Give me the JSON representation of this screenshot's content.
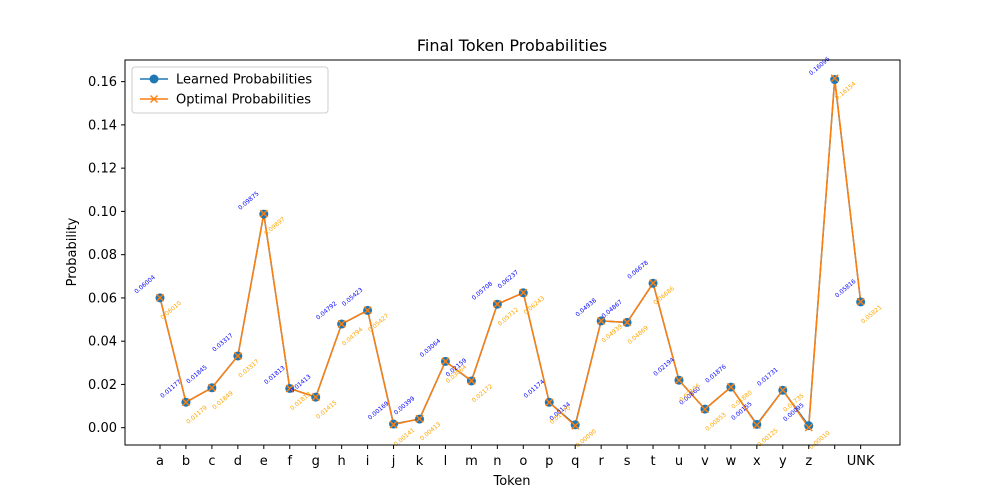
{
  "chart_data": {
    "type": "line",
    "title": "Final Token Probabilities",
    "xlabel": "Token",
    "ylabel": "Probability",
    "categories": [
      "a",
      "b",
      "c",
      "d",
      "e",
      "f",
      "g",
      "h",
      "i",
      "j",
      "k",
      "l",
      "m",
      "n",
      "o",
      "p",
      "q",
      "r",
      "s",
      "t",
      "u",
      "v",
      "w",
      "x",
      "y",
      "z",
      "",
      "UNK"
    ],
    "ylim": [
      -0.008,
      0.17
    ],
    "yticks": [
      0.0,
      0.02,
      0.04,
      0.06,
      0.08,
      0.1,
      0.12,
      0.14,
      0.16
    ],
    "ytick_labels": [
      "0.00",
      "0.02",
      "0.04",
      "0.06",
      "0.08",
      "0.10",
      "0.12",
      "0.14",
      "0.16"
    ],
    "legend_position": "top-left",
    "grid": false,
    "series": [
      {
        "name": "Learned Probabilities",
        "color": "#1f77b4",
        "label_color": "#0000ff",
        "marker": "circle",
        "values": [
          0.06004,
          0.01177,
          0.01845,
          0.03317,
          0.09875,
          0.01813,
          0.01413,
          0.04792,
          0.05423,
          0.00169,
          0.00399,
          0.03064,
          0.02159,
          0.05708,
          0.06237,
          0.01174,
          0.00134,
          0.04938,
          0.04867,
          0.06678,
          0.02194,
          0.0086,
          0.01876,
          0.00155,
          0.01731,
          0.00095,
          0.16096,
          0.05816
        ],
        "labels": [
          "0.06004",
          "0.01177",
          "0.01845",
          "0.03317",
          "0.09875",
          "0.01813",
          "0.01413",
          "0.04792",
          "0.05423",
          "0.00169",
          "0.00399",
          "0.03064",
          "0.02159",
          "0.05708",
          "0.06237",
          "0.01174",
          "0.00134",
          "0.04938",
          "0.04867",
          "0.06678",
          "0.02194",
          "0.00860",
          "0.01876",
          "0.00155",
          "0.01731",
          "0.00095",
          "0.16096",
          "0.05816"
        ]
      },
      {
        "name": "Optimal Probabilities",
        "color": "#ff7f0e",
        "label_color": "#ffa500",
        "marker": "x",
        "values": [
          0.0601,
          0.01179,
          0.01849,
          0.03317,
          0.09897,
          0.01813,
          0.01415,
          0.04794,
          0.05427,
          0.00141,
          0.00413,
          0.03064,
          0.02172,
          0.05712,
          0.06243,
          0.0117,
          0.0009,
          0.04939,
          0.04869,
          0.06686,
          0.02196,
          0.00853,
          0.0188,
          0.00125,
          0.01735,
          0.0001,
          0.16154,
          0.05821
        ],
        "labels": [
          "0.06010",
          "0.01179",
          "0.01849",
          "0.03317",
          "0.09897",
          "0.01813",
          "0.01415",
          "0.04794",
          "0.05427",
          "0.00141",
          "0.00413",
          "0.03064",
          "0.02172",
          "0.05712",
          "0.06243",
          "0.01170",
          "0.00090",
          "0.04939",
          "0.04869",
          "0.06686",
          "0.02196",
          "0.00853",
          "0.01880",
          "0.00125",
          "0.01735",
          "0.00010",
          "0.16154",
          "0.05821"
        ]
      }
    ]
  }
}
